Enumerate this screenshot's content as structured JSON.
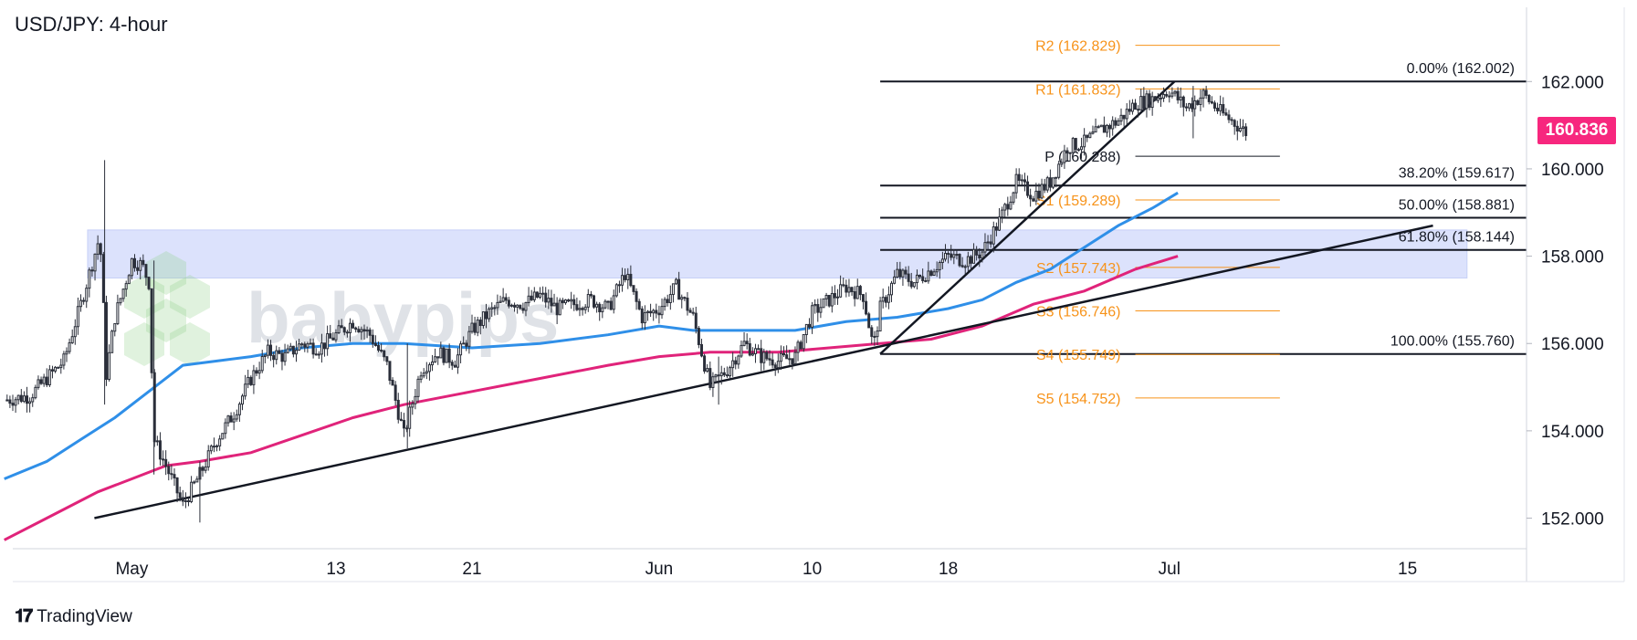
{
  "title": "USD/JPY: 4-hour",
  "branding": {
    "watermark": "babypips",
    "footer": "TradingView"
  },
  "colors": {
    "candle": "#2b2f3a",
    "sma_fast": "#2f8fe8",
    "sma_slow": "#e0237a",
    "pivot": "#f7931a",
    "zone": "#d6ddfb",
    "current_price_bg": "#f7277e"
  },
  "chart_data": {
    "type": "line",
    "symbol": "USD/JPY",
    "timeframe": "4-hour",
    "x_ticks": [
      {
        "label": "May",
        "day": 0
      },
      {
        "label": "13",
        "day": 12
      },
      {
        "label": "21",
        "day": 20
      },
      {
        "label": "Jun",
        "day": 31
      },
      {
        "label": "10",
        "day": 40
      },
      {
        "label": "18",
        "day": 48
      },
      {
        "label": "Jul",
        "day": 61
      },
      {
        "label": "15",
        "day": 75
      }
    ],
    "xlim_days": [
      -7,
      82
    ],
    "y_ticks": [
      "152.000",
      "154.000",
      "156.000",
      "158.000",
      "160.000",
      "162.000"
    ],
    "ylim": [
      151.3,
      163.7
    ],
    "current_price": "160.836",
    "price_path": [
      [
        -7.5,
        154.7
      ],
      [
        -6,
        154.8
      ],
      [
        -4,
        155.6
      ],
      [
        -3,
        156.9
      ],
      [
        -2,
        158.3
      ],
      [
        -1.8,
        158.0
      ],
      [
        -1.5,
        155.3
      ],
      [
        -1,
        156.6
      ],
      [
        0,
        157.9
      ],
      [
        0.6,
        157.8
      ],
      [
        1,
        157.4
      ],
      [
        1.3,
        153.8
      ],
      [
        2,
        153.2
      ],
      [
        3,
        152.3
      ],
      [
        4,
        153.0
      ],
      [
        5,
        153.8
      ],
      [
        6,
        154.4
      ],
      [
        7,
        155.2
      ],
      [
        8,
        155.8
      ],
      [
        9,
        155.7
      ],
      [
        10,
        156.0
      ],
      [
        11,
        155.9
      ],
      [
        12,
        156.2
      ],
      [
        13,
        156.5
      ],
      [
        14,
        156.2
      ],
      [
        15,
        155.5
      ],
      [
        16,
        153.9
      ],
      [
        17,
        155.4
      ],
      [
        18,
        155.8
      ],
      [
        19,
        155.6
      ],
      [
        20,
        156.3
      ],
      [
        21,
        156.7
      ],
      [
        22,
        157.0
      ],
      [
        23,
        156.9
      ],
      [
        24,
        157.1
      ],
      [
        25,
        156.8
      ],
      [
        26,
        156.9
      ],
      [
        27,
        157.0
      ],
      [
        28,
        156.8
      ],
      [
        29,
        157.6
      ],
      [
        30,
        156.6
      ],
      [
        31,
        156.8
      ],
      [
        32,
        157.3
      ],
      [
        33,
        156.6
      ],
      [
        34,
        155.0
      ],
      [
        35,
        155.4
      ],
      [
        36,
        156.0
      ],
      [
        37,
        155.7
      ],
      [
        38,
        155.6
      ],
      [
        39,
        155.7
      ],
      [
        40,
        156.7
      ],
      [
        41,
        157.0
      ],
      [
        42,
        157.3
      ],
      [
        43,
        157.1
      ],
      [
        43.6,
        155.9
      ],
      [
        44,
        156.8
      ],
      [
        45,
        157.6
      ],
      [
        46,
        157.4
      ],
      [
        47,
        157.7
      ],
      [
        48,
        158.0
      ],
      [
        49,
        157.9
      ],
      [
        50,
        158.1
      ],
      [
        51,
        158.8
      ],
      [
        52,
        159.7
      ],
      [
        53,
        159.4
      ],
      [
        54,
        159.7
      ],
      [
        55,
        160.5
      ],
      [
        56,
        160.6
      ],
      [
        57,
        160.9
      ],
      [
        58,
        161.1
      ],
      [
        59,
        161.5
      ],
      [
        60,
        161.6
      ],
      [
        61,
        161.8
      ],
      [
        62,
        161.4
      ],
      [
        63,
        161.7
      ],
      [
        64,
        161.3
      ],
      [
        65,
        161.0
      ],
      [
        65.5,
        160.84
      ]
    ],
    "series": [
      {
        "values": [
          [
            -7.5,
            152.9
          ],
          [
            -5,
            153.3
          ],
          [
            -3,
            153.8
          ],
          [
            -1,
            154.3
          ],
          [
            1,
            154.9
          ],
          [
            3,
            155.5
          ],
          [
            5,
            155.6
          ],
          [
            7,
            155.7
          ],
          [
            10,
            155.9
          ],
          [
            13,
            156.0
          ],
          [
            16,
            156.0
          ],
          [
            20,
            155.9
          ],
          [
            24,
            156.0
          ],
          [
            28,
            156.2
          ],
          [
            31,
            156.4
          ],
          [
            33,
            156.3
          ],
          [
            36,
            156.3
          ],
          [
            39,
            156.3
          ],
          [
            42,
            156.5
          ],
          [
            45,
            156.6
          ],
          [
            48,
            156.8
          ],
          [
            50,
            157.0
          ],
          [
            52,
            157.4
          ],
          [
            54,
            157.7
          ],
          [
            56,
            158.2
          ],
          [
            58,
            158.7
          ],
          [
            60,
            159.1
          ],
          [
            61.5,
            159.45
          ]
        ]
      },
      {
        "values": [
          [
            -7.5,
            151.5
          ],
          [
            -5,
            152.0
          ],
          [
            -2,
            152.6
          ],
          [
            0,
            152.9
          ],
          [
            2,
            153.2
          ],
          [
            4,
            153.3
          ],
          [
            7,
            153.5
          ],
          [
            10,
            153.9
          ],
          [
            13,
            154.3
          ],
          [
            16,
            154.6
          ],
          [
            20,
            154.9
          ],
          [
            24,
            155.2
          ],
          [
            28,
            155.5
          ],
          [
            31,
            155.7
          ],
          [
            34,
            155.8
          ],
          [
            38,
            155.8
          ],
          [
            41,
            155.9
          ],
          [
            44,
            156.0
          ],
          [
            47,
            156.1
          ],
          [
            50,
            156.4
          ],
          [
            53,
            156.9
          ],
          [
            56,
            157.2
          ],
          [
            59,
            157.7
          ],
          [
            61.5,
            158.0
          ]
        ]
      }
    ],
    "trendlines": [
      {
        "from": [
          -2.2,
          152.0
        ],
        "to": [
          76.5,
          158.7
        ]
      },
      {
        "from": [
          44,
          155.76
        ],
        "to": [
          61.3,
          162.0
        ]
      }
    ],
    "horizontal_zone": {
      "x": [
        -2.6,
        78.5
      ],
      "y": [
        157.5,
        158.6
      ]
    },
    "fibonacci": {
      "x_start": 44,
      "labels_x_end": 81.3,
      "levels": [
        {
          "label": "0.00% (162.002)",
          "price": 162.002
        },
        {
          "label": "38.20% (159.617)",
          "price": 159.617
        },
        {
          "label": "50.00% (158.881)",
          "price": 158.881
        },
        {
          "label": "61.80% (158.144)",
          "price": 158.144
        },
        {
          "label": "100.00% (155.760)",
          "price": 155.76
        }
      ]
    },
    "pivots": {
      "line_x": [
        59,
        67.5
      ],
      "levels": [
        {
          "label": "R2 (162.829)",
          "price": 162.829
        },
        {
          "label": "R1 (161.832)",
          "price": 161.832
        },
        {
          "label": "P (160.288)",
          "price": 160.288
        },
        {
          "label": "S1 (159.289)",
          "price": 159.289
        },
        {
          "label": "S2 (157.743)",
          "price": 157.743
        },
        {
          "label": "S3 (156.746)",
          "price": 156.746
        },
        {
          "label": "S4 (155.749)",
          "price": 155.749
        },
        {
          "label": "S5 (154.752)",
          "price": 154.752
        }
      ]
    }
  }
}
